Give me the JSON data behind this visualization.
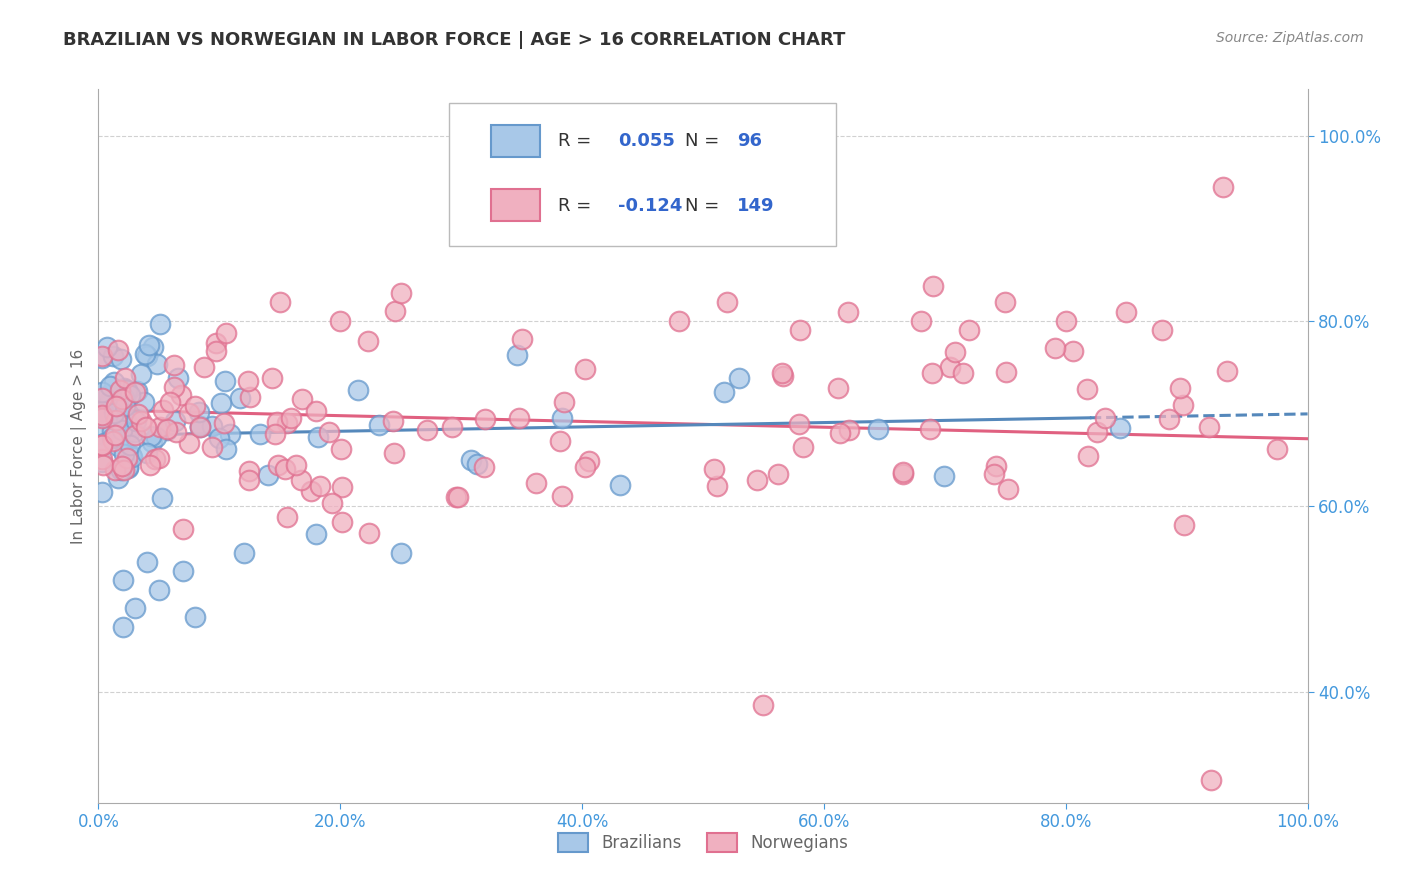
{
  "title": "BRAZILIAN VS NORWEGIAN IN LABOR FORCE | AGE > 16 CORRELATION CHART",
  "source_text": "Source: ZipAtlas.com",
  "ylabel": "In Labor Force | Age > 16",
  "xmin": 0.0,
  "xmax": 1.0,
  "ymin": 0.28,
  "ymax": 1.05,
  "yticks": [
    0.4,
    0.6,
    0.8,
    1.0
  ],
  "ytick_labels": [
    "40.0%",
    "60.0%",
    "80.0%",
    "100.0%"
  ],
  "xticks": [
    0.0,
    0.2,
    0.4,
    0.6,
    0.8,
    1.0
  ],
  "xtick_labels": [
    "0.0%",
    "20.0%",
    "40.0%",
    "60.0%",
    "80.0%",
    "100.0%"
  ],
  "brazil_R": 0.055,
  "brazil_N": 96,
  "norway_R": -0.124,
  "norway_N": 149,
  "brazil_color": "#a8c8e8",
  "norway_color": "#f0b0c0",
  "brazil_edge_color": "#6699cc",
  "norway_edge_color": "#e07090",
  "brazil_line_color": "#5588bb",
  "norway_line_color": "#e06080",
  "title_color": "#333333",
  "axis_label_color": "#666666",
  "tick_color": "#4499dd",
  "grid_color": "#cccccc",
  "legend_text_color": "#3366cc",
  "legend_R_black_color": "#333333"
}
